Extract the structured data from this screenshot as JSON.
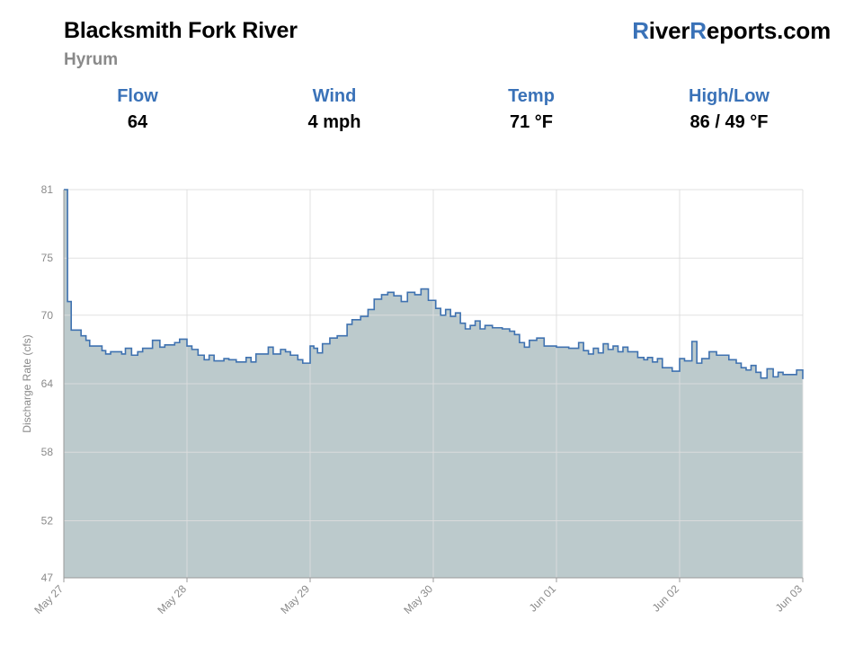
{
  "header": {
    "river_name": "Blacksmith Fork River",
    "location": "Hyrum",
    "brand": {
      "r1": "R",
      "part1": "iver",
      "r2": "R",
      "part2": "eports.com"
    }
  },
  "stats": [
    {
      "label": "Flow",
      "value": "64"
    },
    {
      "label": "Wind",
      "value": "4 mph"
    },
    {
      "label": "Temp",
      "value": "71 °F"
    },
    {
      "label": "High/Low",
      "value": "86 / 49 °F"
    }
  ],
  "colors": {
    "accent": "#3a72b8",
    "line": "#3f72b0",
    "fill": "#bccacc",
    "grid": "#dddddd",
    "tick_text": "#8a8a8a"
  },
  "chart_data": {
    "type": "area",
    "step": true,
    "title": "",
    "xlabel": "",
    "ylabel": "Discharge Rate (cfs)",
    "ylim": [
      47,
      81
    ],
    "yticks": [
      47,
      52,
      58,
      64,
      70,
      75,
      81
    ],
    "xlim": [
      0,
      6
    ],
    "xticks": [
      {
        "x": 0,
        "label": "May 27"
      },
      {
        "x": 1,
        "label": "May 28"
      },
      {
        "x": 2,
        "label": "May 29"
      },
      {
        "x": 3,
        "label": "May 30"
      },
      {
        "x": 4,
        "label": "Jun 01"
      },
      {
        "x": 5,
        "label": "Jun 02"
      },
      {
        "x": 6,
        "label": "Jun 03"
      }
    ],
    "grid": true,
    "legend": false,
    "x": [
      0,
      0.03,
      0.06,
      0.14,
      0.18,
      0.21,
      0.31,
      0.34,
      0.38,
      0.47,
      0.5,
      0.55,
      0.6,
      0.64,
      0.72,
      0.78,
      0.82,
      0.9,
      0.94,
      1.0,
      1.04,
      1.09,
      1.14,
      1.18,
      1.22,
      1.3,
      1.34,
      1.4,
      1.48,
      1.52,
      1.56,
      1.66,
      1.7,
      1.76,
      1.8,
      1.84,
      1.9,
      1.94,
      1.96,
      2.0,
      2.03,
      2.06,
      2.1,
      2.16,
      2.22,
      2.3,
      2.34,
      2.41,
      2.47,
      2.52,
      2.58,
      2.63,
      2.68,
      2.74,
      2.79,
      2.85,
      2.9,
      2.92,
      2.96,
      3.02,
      3.06,
      3.1,
      3.14,
      3.18,
      3.22,
      3.26,
      3.3,
      3.34,
      3.38,
      3.42,
      3.48,
      3.56,
      3.62,
      3.66,
      3.7,
      3.74,
      3.78,
      3.84,
      3.9,
      4.0,
      4.1,
      4.18,
      4.22,
      4.26,
      4.3,
      4.34,
      4.38,
      4.42,
      4.46,
      4.5,
      4.54,
      4.58,
      4.66,
      4.71,
      4.74,
      4.78,
      4.82,
      4.86,
      4.94,
      5.0,
      5.04,
      5.1,
      5.14,
      5.18,
      5.24,
      5.3,
      5.4,
      5.46,
      5.5,
      5.54,
      5.58,
      5.62,
      5.66,
      5.71,
      5.76,
      5.8,
      5.84,
      5.95,
      6.0
    ],
    "values": [
      81,
      71.2,
      68.7,
      68.2,
      67.8,
      67.3,
      66.9,
      66.6,
      66.8,
      66.6,
      67.1,
      66.5,
      66.8,
      67.1,
      67.8,
      67.2,
      67.4,
      67.6,
      67.9,
      67.3,
      67.0,
      66.5,
      66.1,
      66.5,
      66.0,
      66.2,
      66.1,
      65.9,
      66.3,
      65.9,
      66.6,
      67.2,
      66.6,
      67.0,
      66.8,
      66.5,
      66.1,
      65.8,
      65.8,
      67.3,
      67.1,
      66.7,
      67.5,
      68.0,
      68.2,
      69.2,
      69.6,
      69.9,
      70.5,
      71.4,
      71.8,
      72.0,
      71.7,
      71.2,
      72.0,
      71.8,
      72.3,
      72.3,
      71.3,
      70.6,
      70.0,
      70.5,
      69.9,
      70.2,
      69.3,
      68.8,
      69.1,
      69.5,
      68.8,
      69.1,
      68.9,
      68.8,
      68.6,
      68.3,
      67.6,
      67.2,
      67.8,
      68.0,
      67.3,
      67.2,
      67.1,
      67.6,
      66.9,
      66.6,
      67.1,
      66.7,
      67.5,
      67.0,
      67.3,
      66.8,
      67.2,
      66.8,
      66.3,
      66.1,
      66.3,
      65.9,
      66.2,
      65.4,
      65.1,
      66.2,
      66.0,
      67.7,
      65.8,
      66.2,
      66.8,
      66.5,
      66.1,
      65.8,
      65.4,
      65.2,
      65.6,
      65.0,
      64.5,
      65.3,
      64.6,
      65.0,
      64.8,
      65.2,
      64.4
    ]
  }
}
